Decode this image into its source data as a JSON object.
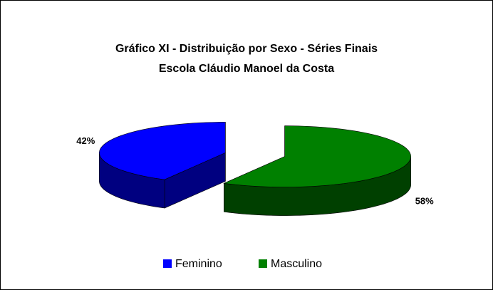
{
  "chart_data": {
    "type": "pie3d",
    "title": "Gráfico XI - Distribuição por Sexo - Séries Finais",
    "subtitle": "Escola Cláudio Manoel da Costa",
    "categories": [
      "Feminino",
      "Masculino"
    ],
    "values": [
      42,
      58
    ],
    "value_labels": [
      "42%",
      "58%"
    ],
    "colors": [
      "#0000ff",
      "#008000"
    ],
    "legend": "bottom"
  }
}
